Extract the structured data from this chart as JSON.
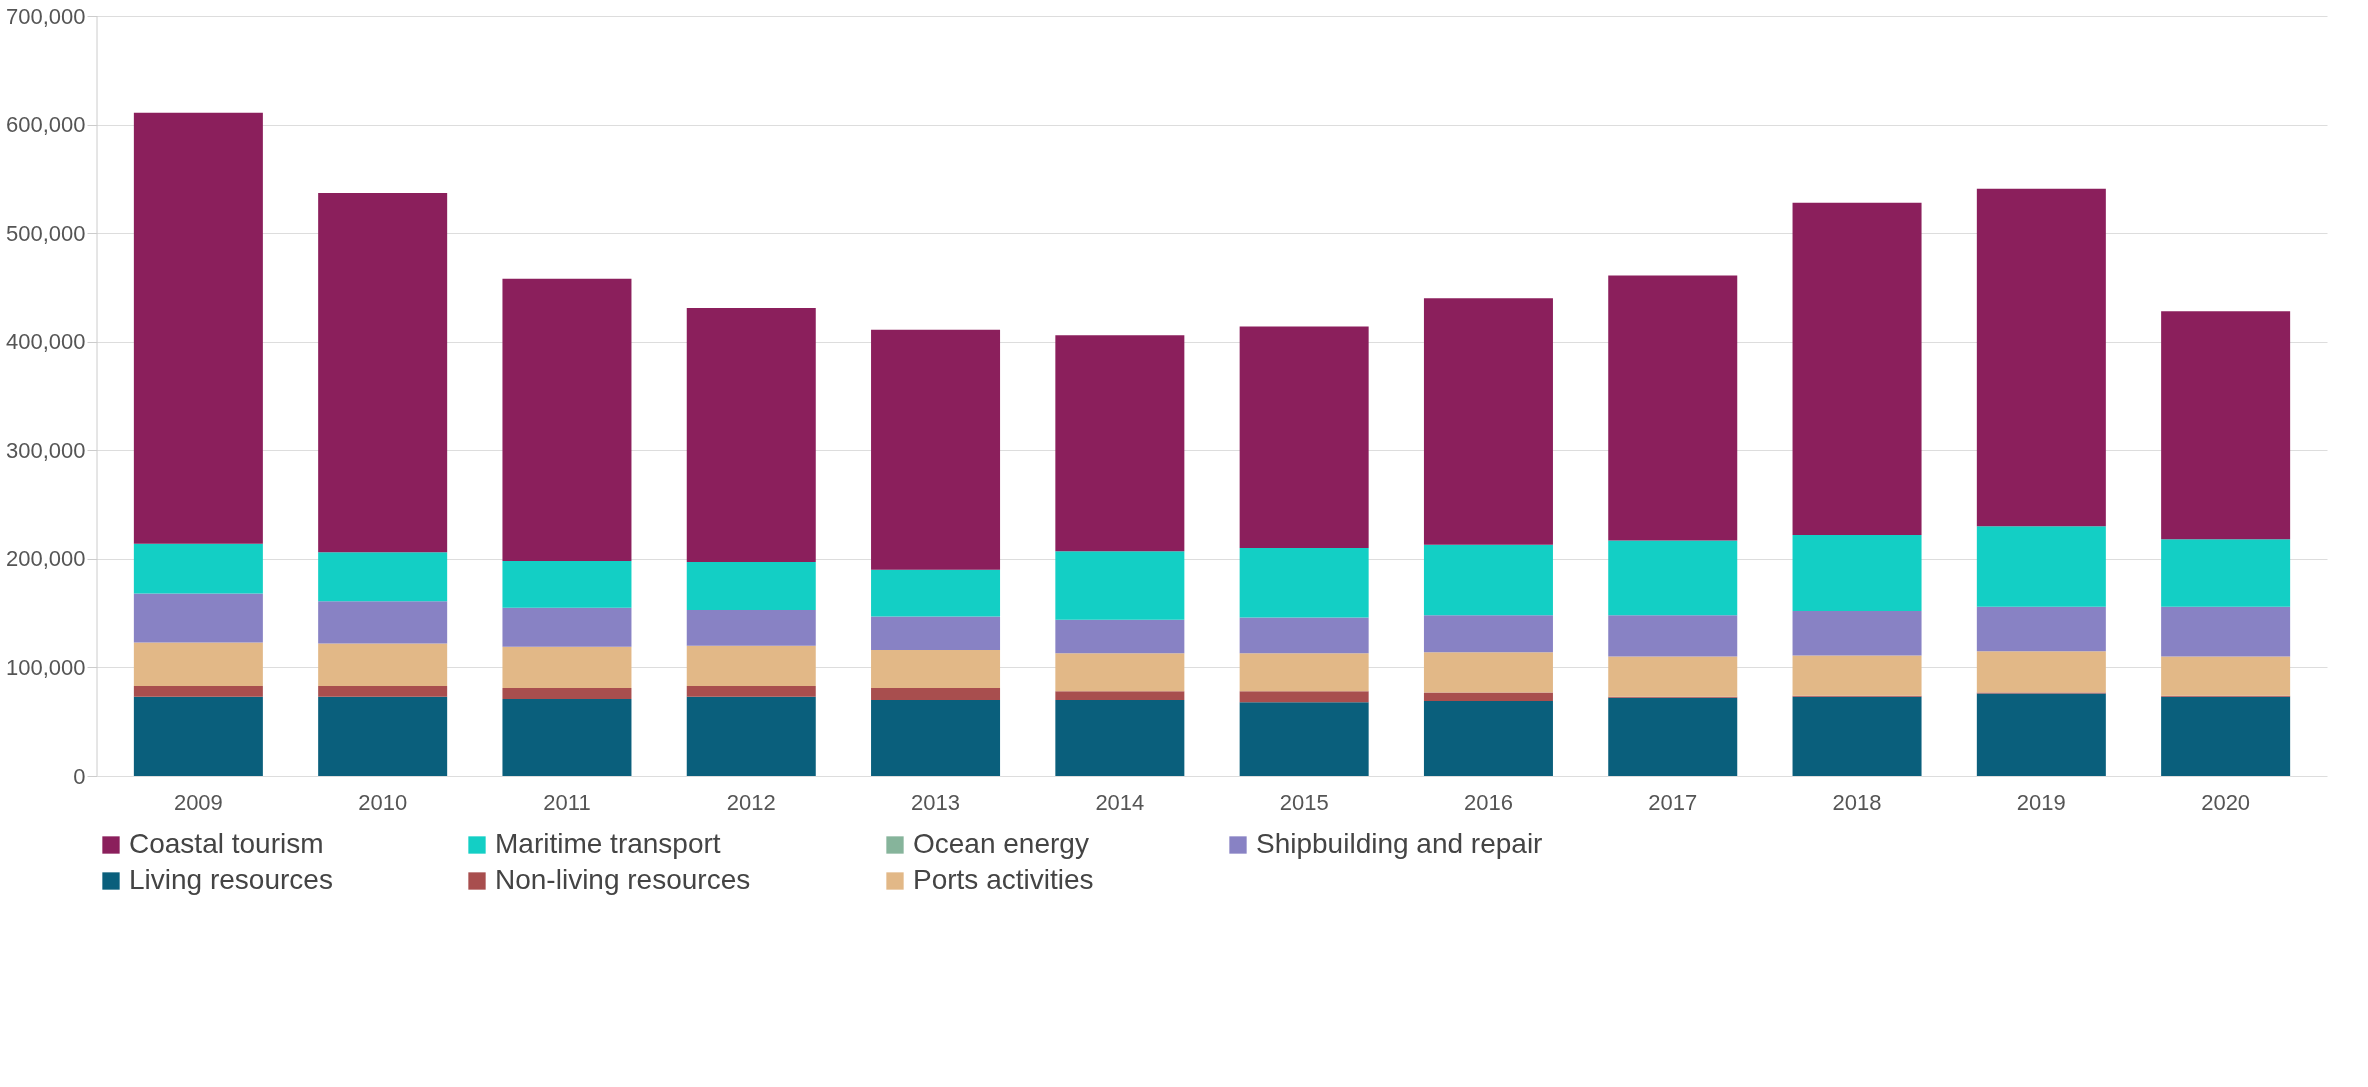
{
  "chart_data": {
    "type": "bar",
    "stacked": true,
    "categories": [
      "2009",
      "2010",
      "2011",
      "2012",
      "2013",
      "2014",
      "2015",
      "2016",
      "2017",
      "2018",
      "2019",
      "2020"
    ],
    "series": [
      {
        "name": "Living resources",
        "color": "#0a5f7c",
        "values": [
          73000,
          73000,
          71000,
          73000,
          70000,
          70000,
          68000,
          69000,
          72000,
          73000,
          76000,
          73000
        ]
      },
      {
        "name": "Non-living resources",
        "color": "#a84e4e",
        "values": [
          10000,
          10000,
          10000,
          10000,
          11000,
          8000,
          10000,
          8000,
          1000,
          1000,
          1000,
          1000
        ]
      },
      {
        "name": "Ports activities",
        "color": "#e2b887",
        "values": [
          40000,
          39000,
          38000,
          37000,
          35000,
          35000,
          35000,
          37000,
          37000,
          37000,
          38000,
          36000
        ]
      },
      {
        "name": "Shipbuilding and repair",
        "color": "#8882c4",
        "values": [
          45000,
          39000,
          36000,
          33000,
          31000,
          31000,
          33000,
          34000,
          38000,
          41000,
          41000,
          46000
        ]
      },
      {
        "name": "Ocean energy",
        "color": "#86b49b",
        "values": [
          0,
          0,
          0,
          0,
          0,
          0,
          0,
          0,
          0,
          0,
          0,
          0
        ]
      },
      {
        "name": "Maritime transport",
        "color": "#13cfc5",
        "values": [
          46000,
          45000,
          43000,
          44000,
          43000,
          63000,
          64000,
          65000,
          69000,
          70000,
          74000,
          62000
        ]
      },
      {
        "name": "Coastal tourism",
        "color": "#8b1f5c",
        "values": [
          397000,
          331000,
          260000,
          234000,
          221000,
          199000,
          204000,
          227000,
          244000,
          306000,
          311000,
          210000
        ]
      }
    ],
    "ylim": [
      0,
      700000
    ],
    "yticks": [
      0,
      {
        "value": 100000,
        "label": "100,000"
      },
      {
        "value": 200000,
        "label": "200,000"
      },
      {
        "value": 300000,
        "label": "300,000"
      },
      {
        "value": 400000,
        "label": "400,000"
      },
      {
        "value": 500000,
        "label": "500,000"
      },
      {
        "value": 600000,
        "label": "600,000"
      },
      {
        "value": 700000,
        "label": "700,000"
      }
    ],
    "grid": "y",
    "legend": "bottom"
  }
}
